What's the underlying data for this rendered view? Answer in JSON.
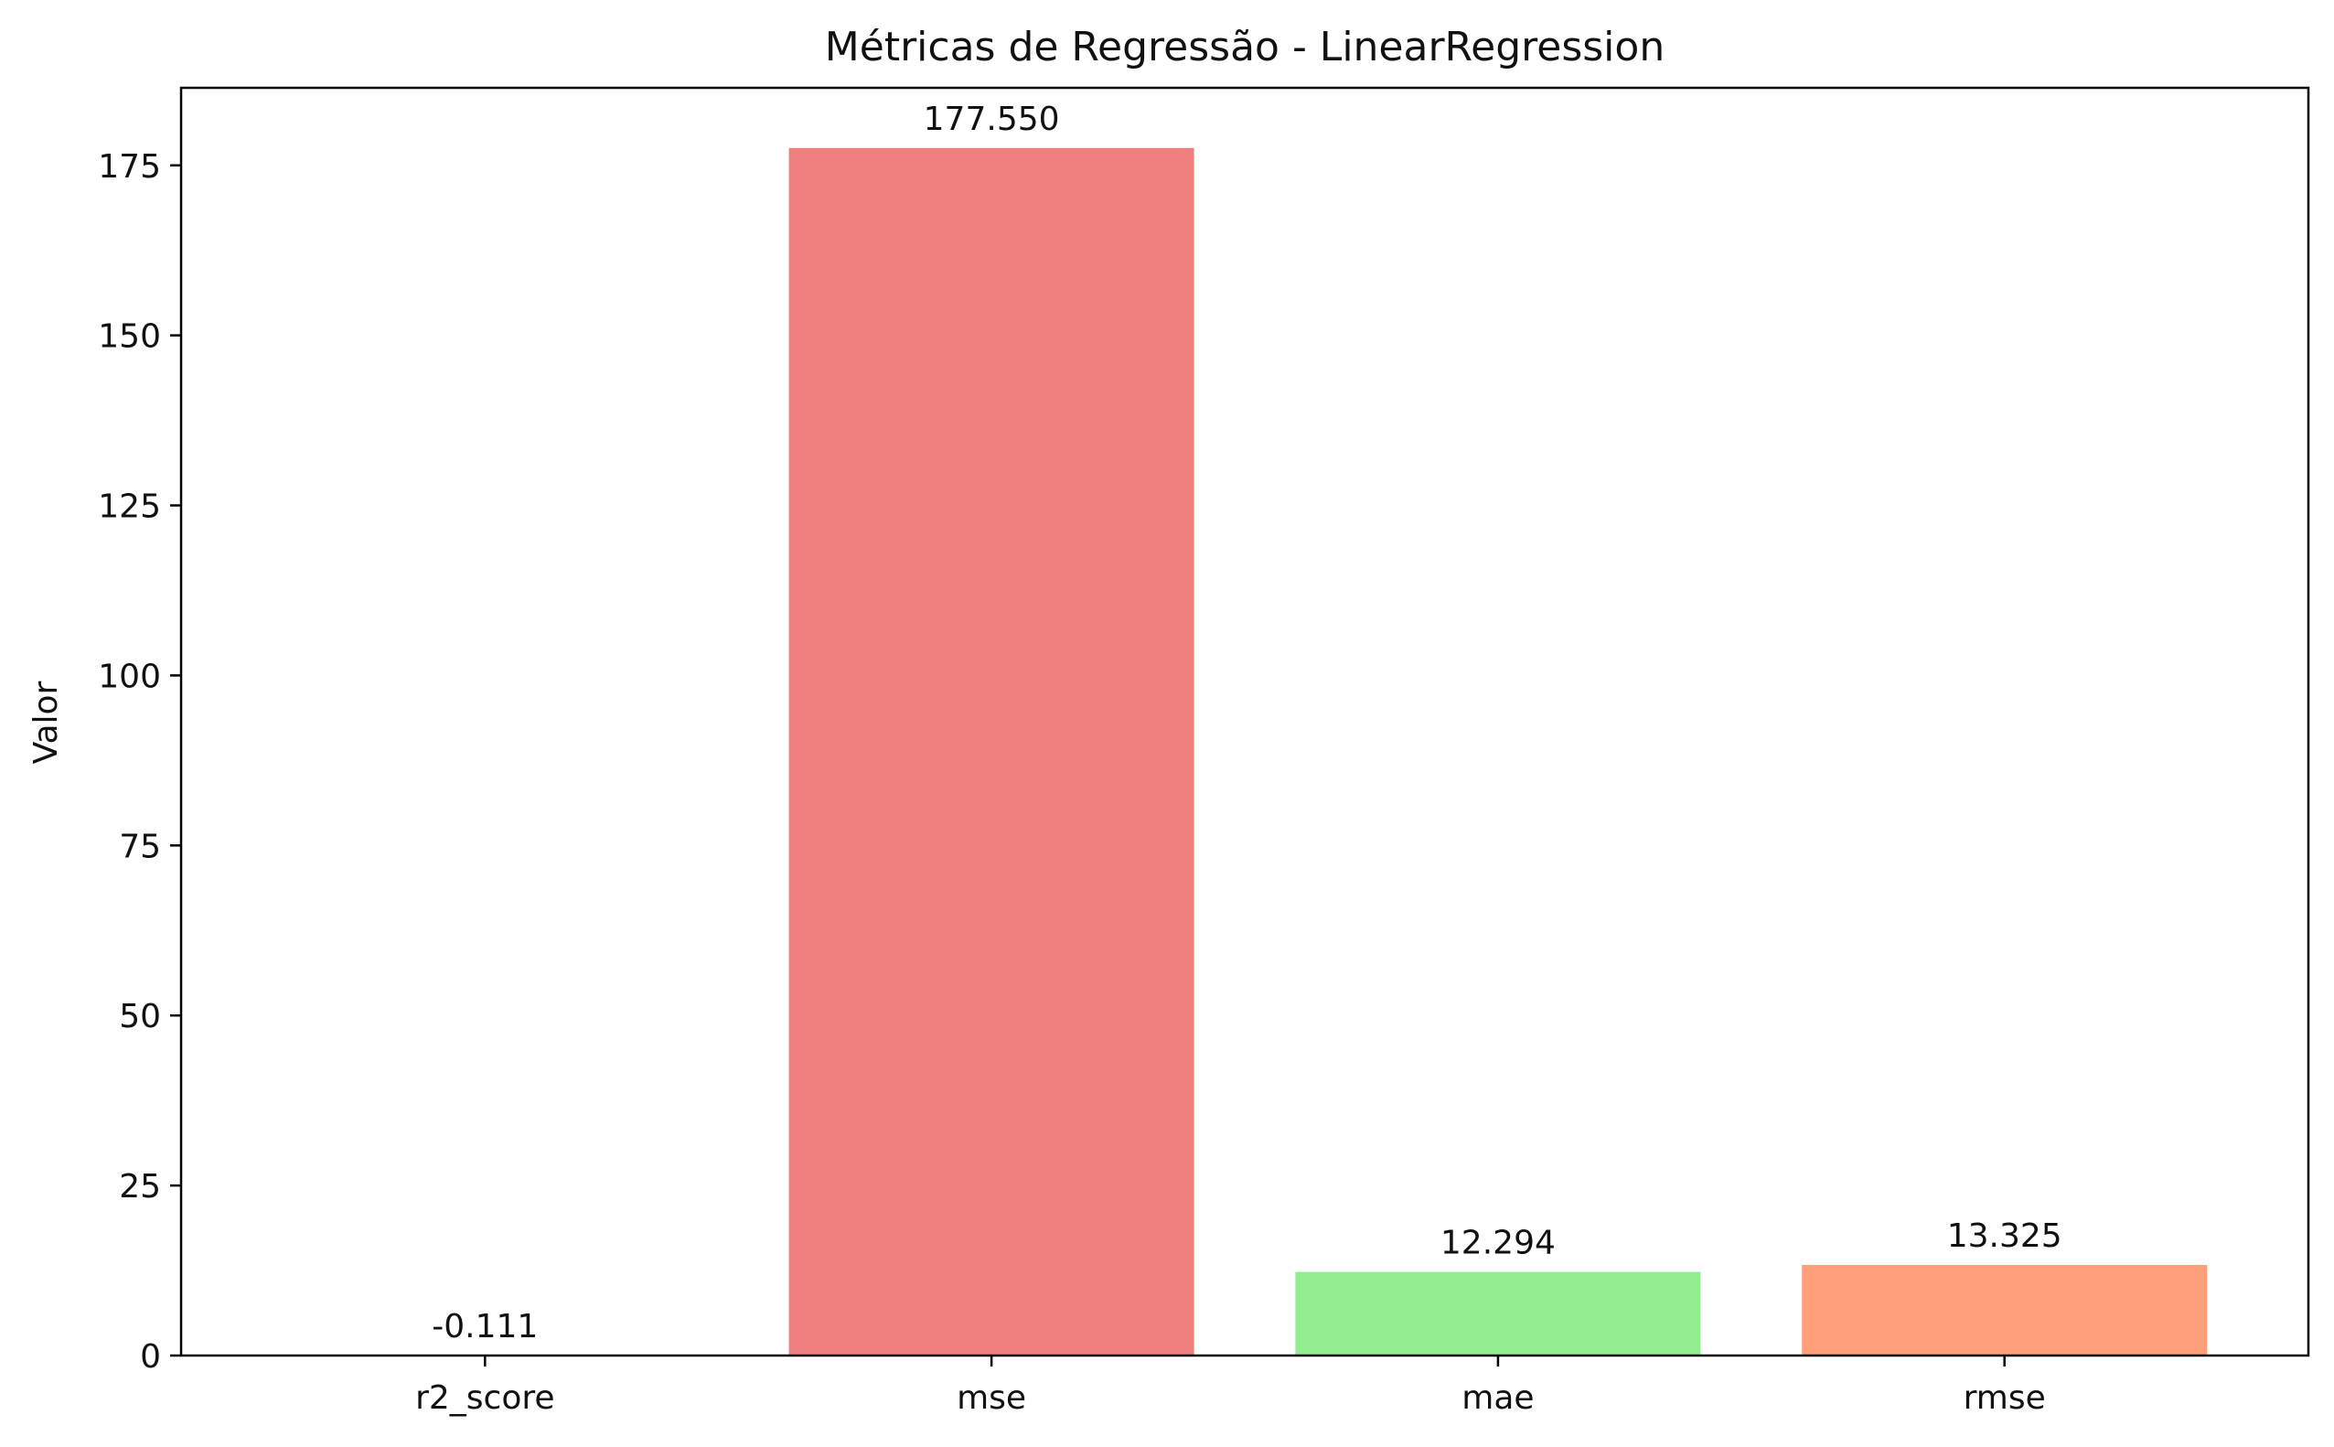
{
  "chart_data": {
    "type": "bar",
    "title": "Métricas de Regressão - LinearRegression",
    "xlabel": "",
    "ylabel": "Valor",
    "categories": [
      "r2_score",
      "mse",
      "mae",
      "rmse"
    ],
    "values": [
      -0.111,
      177.55,
      12.294,
      13.325
    ],
    "value_labels": [
      "-0.111",
      "177.550",
      "12.294",
      "13.325"
    ],
    "colors": [
      "#87CEEB",
      "#F08080",
      "#90EE90",
      "#FFA07A"
    ],
    "ylim": [
      0,
      186.4
    ],
    "yticks": [
      0,
      25,
      50,
      75,
      100,
      125,
      150,
      175
    ],
    "grid": false,
    "legend": "none"
  }
}
